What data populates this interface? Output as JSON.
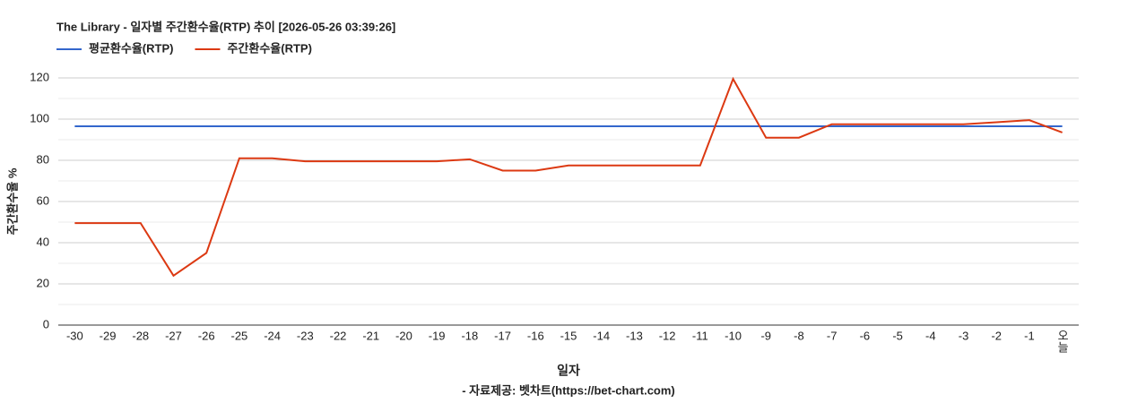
{
  "chart_data": {
    "type": "line",
    "title": "The Library - 일자별 주간환수율(RTP) 추이 [2026-05-26 03:39:26]",
    "x_label": "일자",
    "y_label": "주간환수율 %",
    "source": "- 자료제공: 벳차트(https://bet-chart.com)",
    "categories": [
      "-30",
      "-29",
      "-28",
      "-27",
      "-26",
      "-25",
      "-24",
      "-23",
      "-22",
      "-21",
      "-20",
      "-19",
      "-18",
      "-17",
      "-16",
      "-15",
      "-14",
      "-13",
      "-12",
      "-11",
      "-10",
      "-9",
      "-8",
      "-7",
      "-6",
      "-5",
      "-4",
      "-3",
      "-2",
      "-1",
      "오늘"
    ],
    "series": [
      {
        "name": "평균환수율(RTP)",
        "color": "#3366cc",
        "values": [
          96.5,
          96.5,
          96.5,
          96.5,
          96.5,
          96.5,
          96.5,
          96.5,
          96.5,
          96.5,
          96.5,
          96.5,
          96.5,
          96.5,
          96.5,
          96.5,
          96.5,
          96.5,
          96.5,
          96.5,
          96.5,
          96.5,
          96.5,
          96.5,
          96.5,
          96.5,
          96.5,
          96.5,
          96.5,
          96.5,
          96.5
        ]
      },
      {
        "name": "주간환수율(RTP)",
        "color": "#dc3912",
        "values": [
          49.5,
          49.5,
          49.5,
          24,
          35,
          81,
          81,
          79.5,
          79.5,
          79.5,
          79.5,
          79.5,
          80.5,
          75,
          75,
          77.5,
          77.5,
          77.5,
          77.5,
          77.5,
          119.5,
          91,
          91,
          97.5,
          97.5,
          97.5,
          97.5,
          97.5,
          98.5,
          99.5,
          93.5
        ]
      }
    ],
    "ylim": [
      0,
      120
    ],
    "yticks": [
      0,
      20,
      40,
      60,
      80,
      100,
      120
    ],
    "minor_yticks": [
      10,
      30,
      50,
      70,
      90,
      110
    ],
    "grid": true,
    "legend": "top-left"
  }
}
